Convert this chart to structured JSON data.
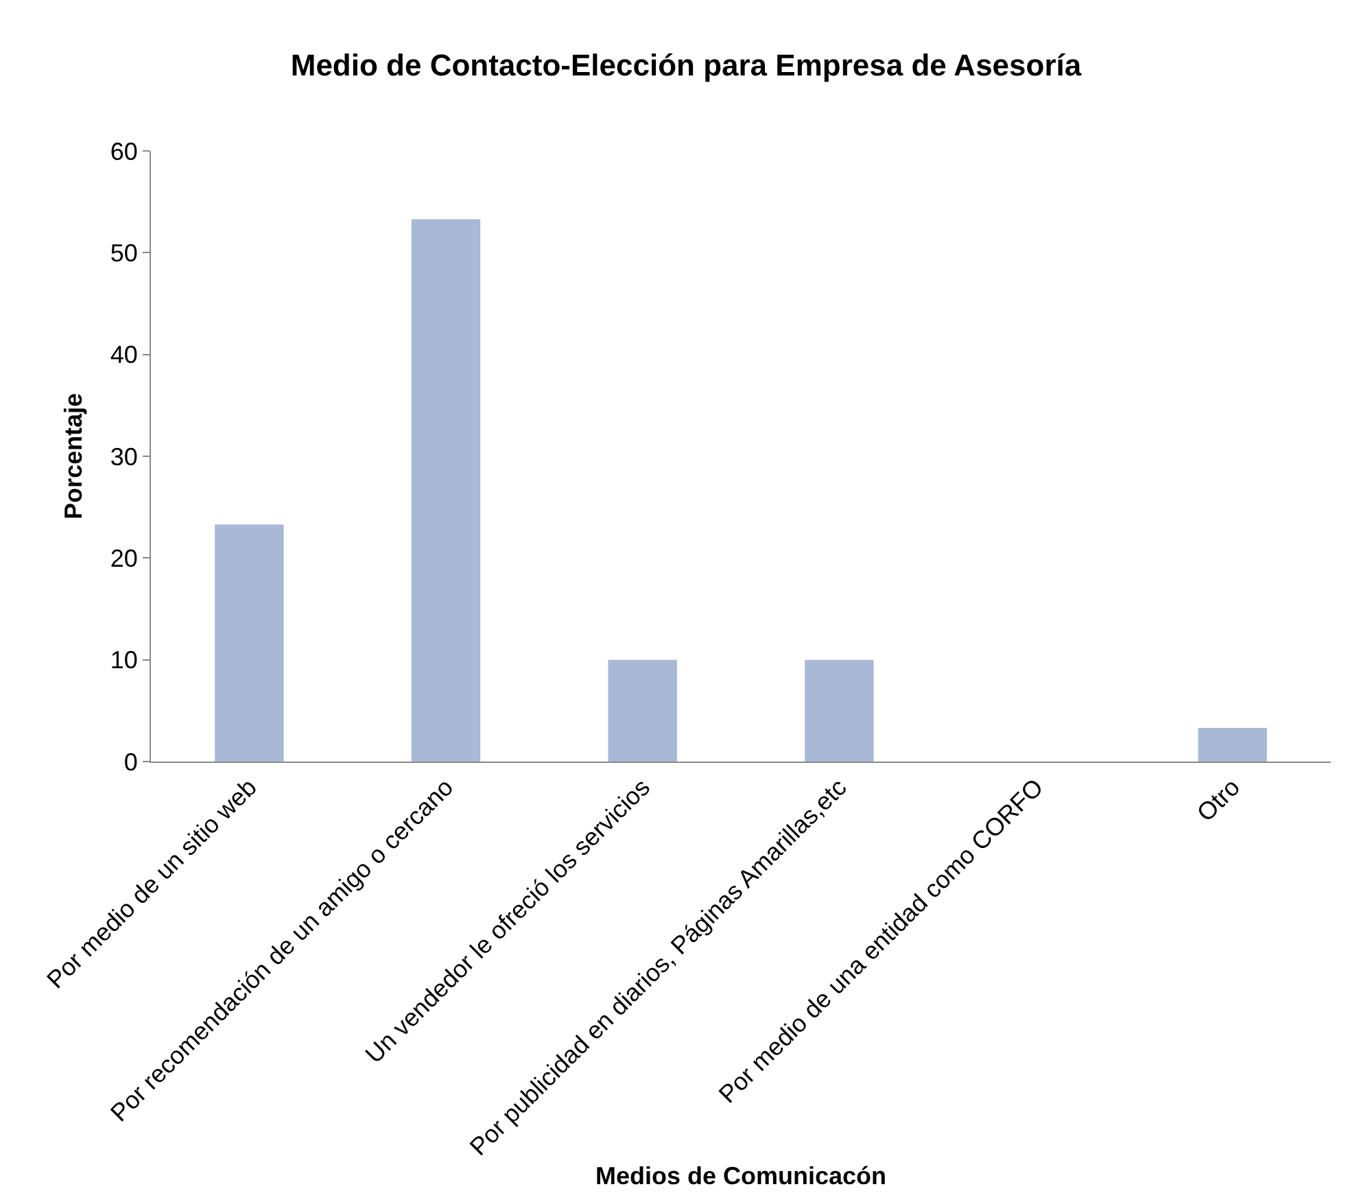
{
  "chart_data": {
    "type": "bar",
    "title": "Medio de Contacto-Elección para Empresa de Asesoría",
    "xlabel": "Medios de Comunicacón",
    "ylabel": "Porcentaje",
    "categories": [
      "Por medio de un sitio web",
      "Por recomendación de un amigo o cercano",
      "Un vendedor le ofreció los servicios",
      "Por publicidad en diarios, Páginas Amarillas,etc",
      "Por medio de una entidad como CORFO",
      "Otro"
    ],
    "values": [
      23.3,
      53.3,
      10,
      10,
      0,
      3.3
    ],
    "color": "#a9b8d6",
    "ylim": [
      0,
      60
    ],
    "yticks": [
      0,
      10,
      20,
      30,
      40,
      50,
      60
    ]
  }
}
